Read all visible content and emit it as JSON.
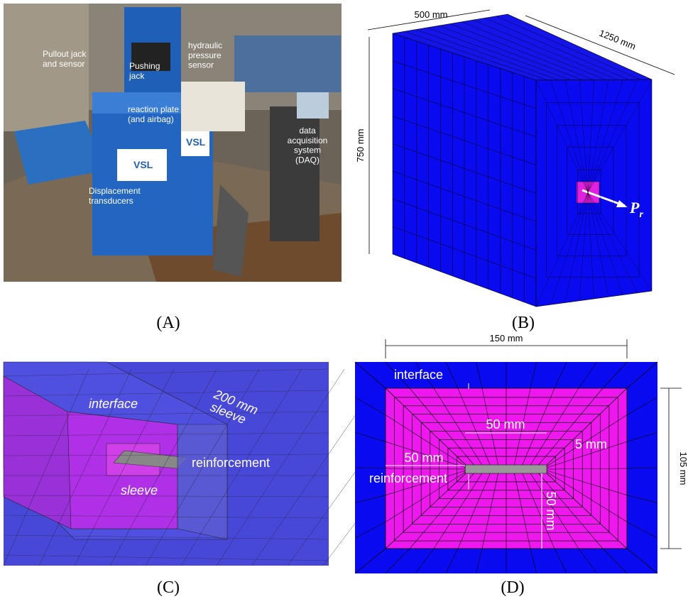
{
  "panels": [
    {
      "caption": "(A)",
      "labels": [
        "Pullout jack\nand sensor",
        "Pushing\njack",
        "hydraulic\npressure\nsensor",
        "reaction plate\n(and airbag)",
        "data\nacquisition\nsystem\n(DAQ)",
        "Displacement\ntransducers",
        "VSL",
        "VSL"
      ]
    },
    {
      "caption": "(B)",
      "labels": [
        "500 mm",
        "1250 mm",
        "750 mm"
      ],
      "force": {
        "main": "P",
        "sub": "r"
      }
    },
    {
      "caption": "(C)",
      "labels": [
        "interface",
        "200 mm",
        "sleeve",
        "reinforcement",
        "sleeve"
      ]
    },
    {
      "caption": "(D)",
      "labels": [
        "150 mm",
        "interface",
        "50 mm",
        "5 mm",
        "50 mm",
        "reinforcement",
        "50 mm",
        "105 mm"
      ]
    }
  ]
}
